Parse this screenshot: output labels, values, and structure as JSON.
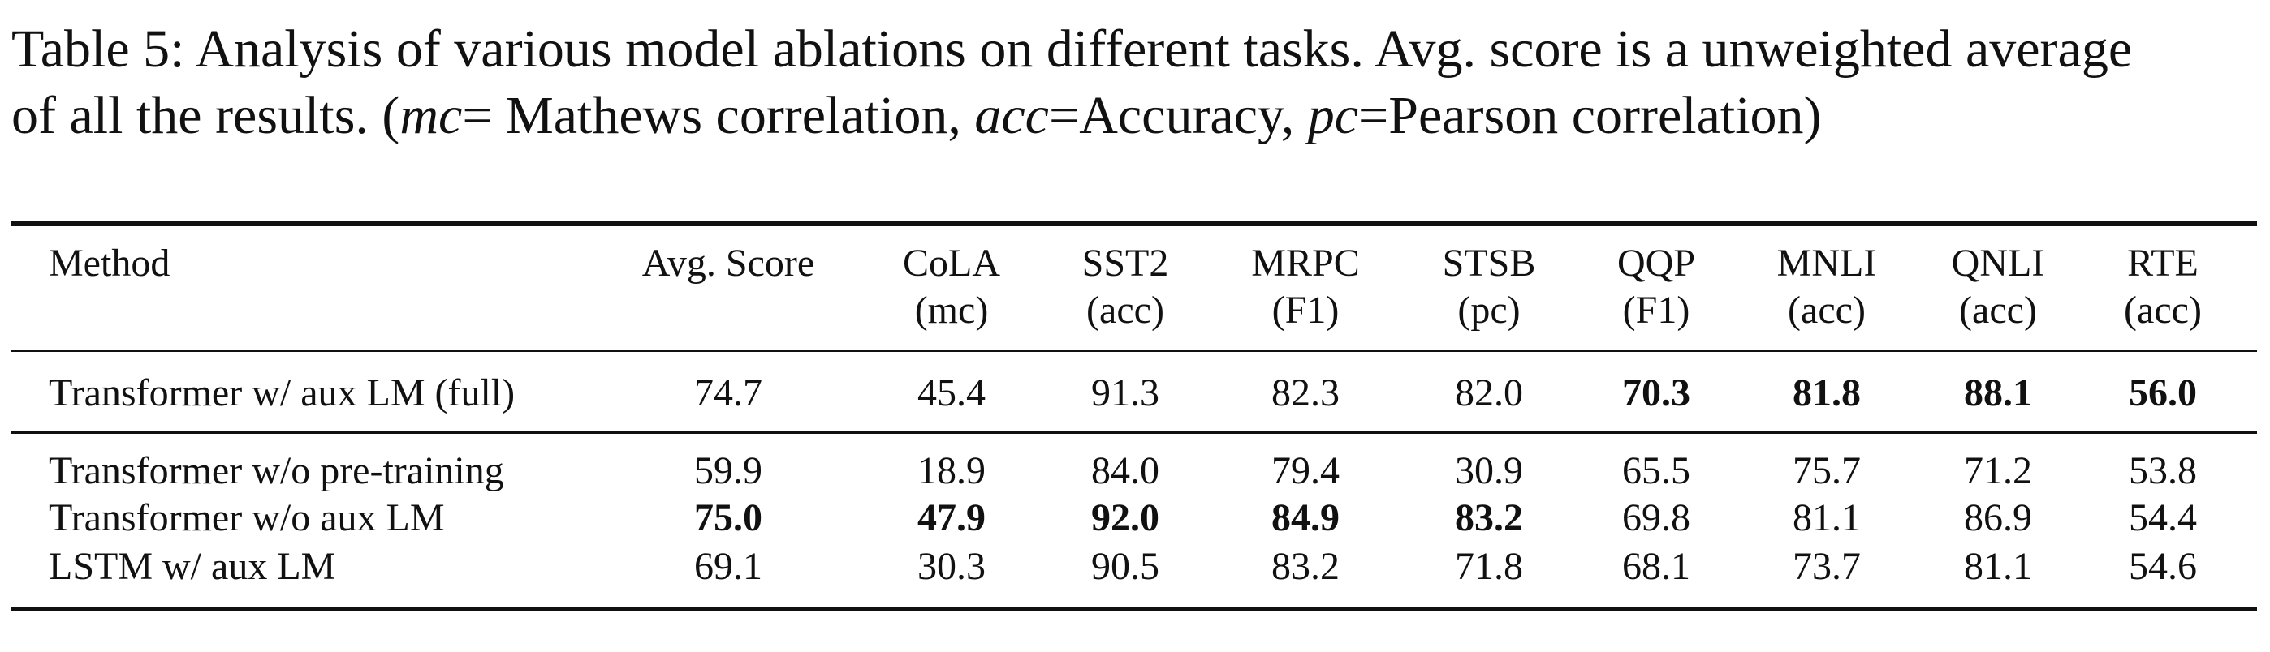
{
  "caption": {
    "line1": "Table 5: Analysis of various model ablations on different tasks. Avg. score is a unweighted average",
    "line2_a": "of all the results. (",
    "mc": "mc",
    "line2_b": "= Mathews correlation, ",
    "acc": "acc",
    "line2_c": "=Accuracy, ",
    "pc": "pc",
    "line2_d": "=Pearson correlation)"
  },
  "table": {
    "method_header": "Method",
    "columns": [
      {
        "name": "Avg. Score",
        "metric": ""
      },
      {
        "name": "CoLA",
        "metric": "(mc)"
      },
      {
        "name": "SST2",
        "metric": "(acc)"
      },
      {
        "name": "MRPC",
        "metric": "(F1)"
      },
      {
        "name": "STSB",
        "metric": "(pc)"
      },
      {
        "name": "QQP",
        "metric": "(F1)"
      },
      {
        "name": "MNLI",
        "metric": "(acc)"
      },
      {
        "name": "QNLI",
        "metric": "(acc)"
      },
      {
        "name": "RTE",
        "metric": "(acc)"
      }
    ],
    "rows": [
      {
        "method": "Transformer w/ aux LM (full)",
        "values": [
          "74.7",
          "45.4",
          "91.3",
          "82.3",
          "82.0",
          "70.3",
          "81.8",
          "88.1",
          "56.0"
        ],
        "bold": [
          false,
          false,
          false,
          false,
          false,
          true,
          true,
          true,
          true
        ]
      },
      {
        "method": "Transformer w/o pre-training",
        "values": [
          "59.9",
          "18.9",
          "84.0",
          "79.4",
          "30.9",
          "65.5",
          "75.7",
          "71.2",
          "53.8"
        ],
        "bold": [
          false,
          false,
          false,
          false,
          false,
          false,
          false,
          false,
          false
        ]
      },
      {
        "method": "Transformer w/o aux LM",
        "values": [
          "75.0",
          "47.9",
          "92.0",
          "84.9",
          "83.2",
          "69.8",
          "81.1",
          "86.9",
          "54.4"
        ],
        "bold": [
          true,
          true,
          true,
          true,
          true,
          false,
          false,
          false,
          false
        ]
      },
      {
        "method": "LSTM w/ aux LM",
        "values": [
          "69.1",
          "30.3",
          "90.5",
          "83.2",
          "71.8",
          "68.1",
          "73.7",
          "81.1",
          "54.6"
        ],
        "bold": [
          false,
          false,
          false,
          false,
          false,
          false,
          false,
          false,
          false
        ]
      }
    ]
  }
}
